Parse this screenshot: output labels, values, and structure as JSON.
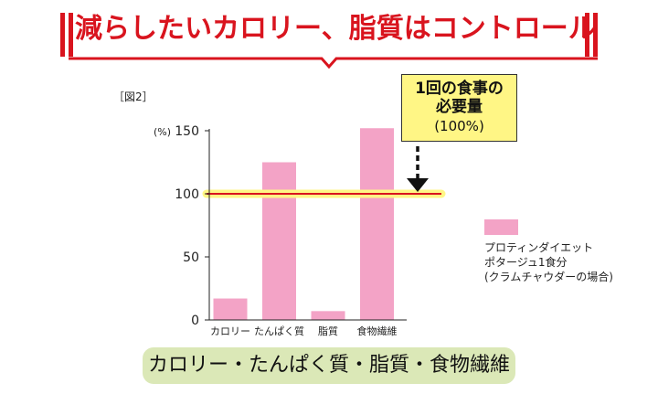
{
  "banner": {
    "title": "減らしたいカロリー、脂質はコントロール"
  },
  "figure": {
    "label": "［図2］"
  },
  "callout": {
    "line1": "1回の食事の",
    "line2": "必要量",
    "line3": "(100%)"
  },
  "legend": {
    "line1": "プロティンダイエット",
    "line2": "ポタージュ1食分",
    "line3": "(クラムチャウダーの場合)",
    "color": "#f3a3c6"
  },
  "footer": {
    "text": "カロリー・たんぱく質・脂質・食物繊維"
  },
  "colors": {
    "accent_red": "#d9141e",
    "bar": "#f3a3c6",
    "highlight": "#fff685",
    "pill": "#dbe8b7"
  },
  "chart_data": {
    "type": "bar",
    "categories": [
      "カロリー",
      "たんぱく質",
      "脂質",
      "食物繊維"
    ],
    "values": [
      17,
      125,
      7,
      152
    ],
    "yunit": "(%)",
    "yticks": [
      0,
      50,
      100,
      150
    ],
    "ylim": [
      0,
      150
    ],
    "reference_line": 100,
    "grid": false
  }
}
